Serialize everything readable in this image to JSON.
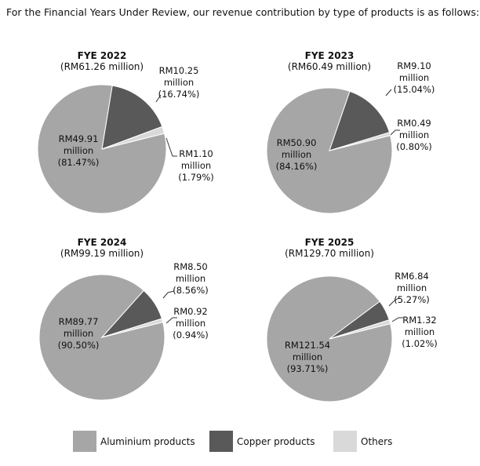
{
  "heading": "For the Financial Years Under Review, our revenue contribution by type of products is as follows:",
  "legend": {
    "categories": [
      "Aluminium products",
      "Copper products",
      "Others"
    ],
    "colors": [
      "#a6a6a6",
      "#595959",
      "#d9d9d9"
    ]
  },
  "chart_data": [
    {
      "type": "pie",
      "title": "FYE 2022",
      "subtitle": "(RM61.26 million)",
      "values": [
        81.47,
        16.74,
        1.79
      ],
      "value_labels": [
        "(81.47%)",
        "(16.74%)",
        "(1.79%)"
      ],
      "amount_labels": [
        "RM49.91 million",
        "RM10.25 million",
        "RM1.10 million"
      ]
    },
    {
      "type": "pie",
      "title": "FYE 2023",
      "subtitle": "(RM60.49 million)",
      "values": [
        84.16,
        15.04,
        0.8
      ],
      "value_labels": [
        "(84.16%)",
        "(15.04%)",
        "(0.80%)"
      ],
      "amount_labels": [
        "RM50.90 million",
        "RM9.10 million",
        "RM0.49 million"
      ]
    },
    {
      "type": "pie",
      "title": "FYE 2024",
      "subtitle": "(RM99.19 million)",
      "values": [
        90.5,
        8.56,
        0.94
      ],
      "value_labels": [
        "(90.50%)",
        "(8.56%)",
        "(0.94%)"
      ],
      "amount_labels": [
        "RM89.77 million",
        "RM8.50 million",
        "RM0.92 million"
      ]
    },
    {
      "type": "pie",
      "title": "FYE 2025",
      "subtitle": "(RM129.70 million)",
      "values": [
        93.71,
        5.27,
        1.02
      ],
      "value_labels": [
        "(93.71%)",
        "(5.27%)",
        "(1.02%)"
      ],
      "amount_labels": [
        "RM121.54 million",
        "RM6.84 million",
        "RM1.32 million"
      ]
    }
  ]
}
